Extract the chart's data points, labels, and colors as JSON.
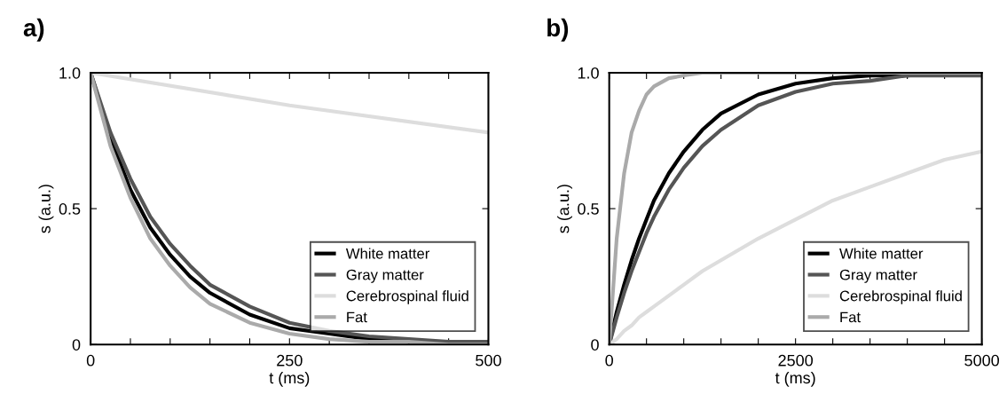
{
  "chart_data": [
    {
      "type": "line",
      "xlabel": "t (ms)",
      "ylabel": "s (a.u.)",
      "annotations": [
        "a)"
      ],
      "xlim": [
        0,
        500
      ],
      "ylim": [
        0,
        1.0
      ],
      "xticks": [
        0,
        {
          "value": 50,
          "label": null
        },
        {
          "value": 100,
          "label": null
        },
        {
          "value": 150,
          "label": null
        },
        {
          "value": 200,
          "label": null
        },
        250,
        {
          "value": 300,
          "label": null
        },
        {
          "value": 350,
          "label": null
        },
        {
          "value": 400,
          "label": null
        },
        {
          "value": 450,
          "label": null
        },
        500
      ],
      "yticks": [
        0,
        0.5,
        {
          "value": 1.0,
          "label": "1.0"
        }
      ],
      "grid": false,
      "legend": "bottom right",
      "marker": "none",
      "line_style": "solid",
      "x": [
        0,
        25,
        50,
        75,
        100,
        125,
        150,
        200,
        250,
        300,
        350,
        400,
        450,
        500
      ],
      "series": [
        {
          "name": "White matter",
          "color": "#000000",
          "values": [
            1,
            0.76,
            0.57,
            0.43,
            0.33,
            0.25,
            0.19,
            0.11,
            0.06,
            0.04,
            0.02,
            0.01,
            0.01,
            0
          ]
        },
        {
          "name": "Gray matter",
          "color": "#555555",
          "values": [
            1,
            0.78,
            0.61,
            0.47,
            0.37,
            0.29,
            0.22,
            0.14,
            0.08,
            0.05,
            0.03,
            0.02,
            0.01,
            0.01
          ]
        },
        {
          "name": "Cerebrospinal fluid",
          "color": "#dddddd",
          "x": [
            0,
            250,
            500
          ],
          "values": [
            1,
            0.88,
            0.78
          ]
        },
        {
          "name": "Fat",
          "color": "#aaaaaa",
          "values": [
            1,
            0.73,
            0.54,
            0.39,
            0.29,
            0.21,
            0.15,
            0.08,
            0.04,
            0.02,
            0.01,
            0.01,
            0,
            0
          ]
        }
      ]
    },
    {
      "type": "line",
      "xlabel": "t (ms)",
      "ylabel": "s (a.u.)",
      "annotations": [
        "b)"
      ],
      "xlim": [
        0,
        5000
      ],
      "ylim": [
        0,
        1.0
      ],
      "xticks": [
        0,
        {
          "value": 500,
          "label": null
        },
        {
          "value": 1000,
          "label": null
        },
        {
          "value": 1500,
          "label": null
        },
        {
          "value": 2000,
          "label": null
        },
        2500,
        {
          "value": 3000,
          "label": null
        },
        {
          "value": 3500,
          "label": null
        },
        {
          "value": 4000,
          "label": null
        },
        {
          "value": 4500,
          "label": null
        },
        5000
      ],
      "yticks": [
        0,
        0.5,
        {
          "value": 1.0,
          "label": "1.0"
        }
      ],
      "grid": false,
      "legend": "bottom right",
      "marker": "none",
      "line_style": "solid",
      "x": [
        0,
        100,
        200,
        300,
        400,
        500,
        600,
        800,
        1000,
        1250,
        1500,
        2000,
        2500,
        3000,
        3500,
        4000,
        4500,
        5000
      ],
      "series": [
        {
          "name": "White matter",
          "color": "#000000",
          "values": [
            0,
            0.12,
            0.22,
            0.31,
            0.39,
            0.46,
            0.53,
            0.63,
            0.71,
            0.79,
            0.85,
            0.92,
            0.96,
            0.98,
            0.99,
            0.99,
            1,
            1
          ]
        },
        {
          "name": "Gray matter",
          "color": "#555555",
          "values": [
            0,
            0.1,
            0.19,
            0.27,
            0.34,
            0.41,
            0.47,
            0.57,
            0.65,
            0.73,
            0.79,
            0.88,
            0.93,
            0.96,
            0.97,
            0.99,
            0.99,
            0.99
          ]
        },
        {
          "name": "Cerebrospinal fluid",
          "color": "#dddddd",
          "values": [
            0,
            0.02,
            0.05,
            0.07,
            0.1,
            0.12,
            0.14,
            0.18,
            0.22,
            0.27,
            0.31,
            0.39,
            0.46,
            0.53,
            0.58,
            0.63,
            0.68,
            0.71
          ]
        },
        {
          "name": "Fat",
          "color": "#aaaaaa",
          "values": [
            0,
            0.39,
            0.63,
            0.78,
            0.86,
            0.92,
            0.95,
            0.98,
            0.99,
            1,
            1,
            1,
            1,
            1,
            1,
            1,
            1,
            1
          ]
        }
      ]
    }
  ]
}
